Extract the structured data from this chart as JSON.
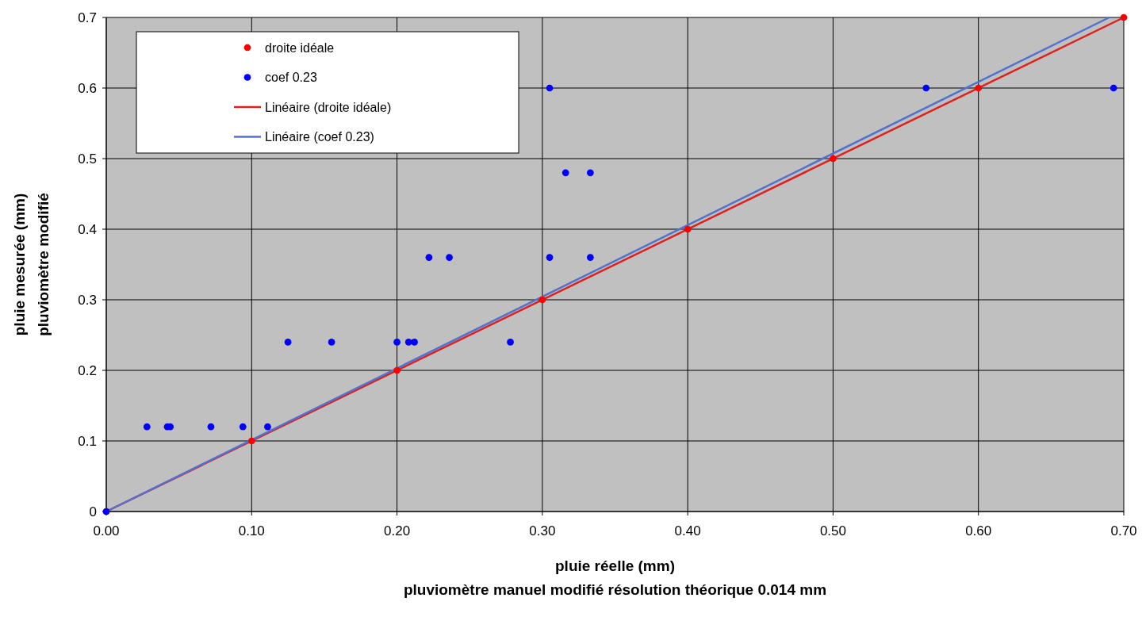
{
  "chart_data": {
    "type": "scatter",
    "xlabel": "pluie réelle (mm)\npluviomètre manuel modifié résolution théorique 0.014 mm",
    "ylabel": "pluie mesurée (mm)\npluviomètre modifié",
    "xlim": [
      0,
      0.7
    ],
    "ylim": [
      0,
      0.7
    ],
    "xticks": [
      {
        "value": 0,
        "label": "0.00"
      },
      {
        "value": 0.1,
        "label": "0.10"
      },
      {
        "value": 0.2,
        "label": "0.20"
      },
      {
        "value": 0.3,
        "label": "0.30"
      },
      {
        "value": 0.4,
        "label": "0.40"
      },
      {
        "value": 0.5,
        "label": "0.50"
      },
      {
        "value": 0.6,
        "label": "0.60"
      },
      {
        "value": 0.7,
        "label": "0.70"
      }
    ],
    "yticks": [
      0,
      0.1,
      0.2,
      0.3,
      0.4,
      0.5,
      0.6,
      0.7
    ],
    "grid": true,
    "legend": "top left",
    "marker": "circle",
    "series": [
      {
        "name": "droite idéale",
        "color": "#ff0000",
        "x": [
          0,
          0.1,
          0.2,
          0.3,
          0.4,
          0.5,
          0.6,
          0.7
        ],
        "values": [
          0,
          0.1,
          0.2,
          0.3,
          0.4,
          0.5,
          0.6,
          0.7
        ]
      },
      {
        "name": "coef 0.23",
        "color": "#0000ff",
        "x": [
          0,
          0.028,
          0.042,
          0.044,
          0.072,
          0.094,
          0.111,
          0.125,
          0.155,
          0.2,
          0.208,
          0.212,
          0.278,
          0.222,
          0.236,
          0.305,
          0.333,
          0.316,
          0.333,
          0.305,
          0.564,
          0.693
        ],
        "values": [
          0,
          0.12,
          0.12,
          0.12,
          0.12,
          0.12,
          0.12,
          0.24,
          0.24,
          0.24,
          0.24,
          0.24,
          0.24,
          0.36,
          0.36,
          0.36,
          0.36,
          0.48,
          0.48,
          0.6,
          0.6,
          0.6
        ]
      },
      {
        "type": "line",
        "marker": "none",
        "name": "Linéaire (droite idéale)",
        "color": "#e0201b",
        "x": [
          0,
          0.7
        ],
        "values": [
          0,
          0.7
        ]
      },
      {
        "type": "line",
        "marker": "none",
        "name": "Linéaire (coef 0.23)",
        "color": "#5072d0",
        "x": [
          0,
          0.69
        ],
        "values": [
          0,
          0.7
        ]
      }
    ]
  }
}
